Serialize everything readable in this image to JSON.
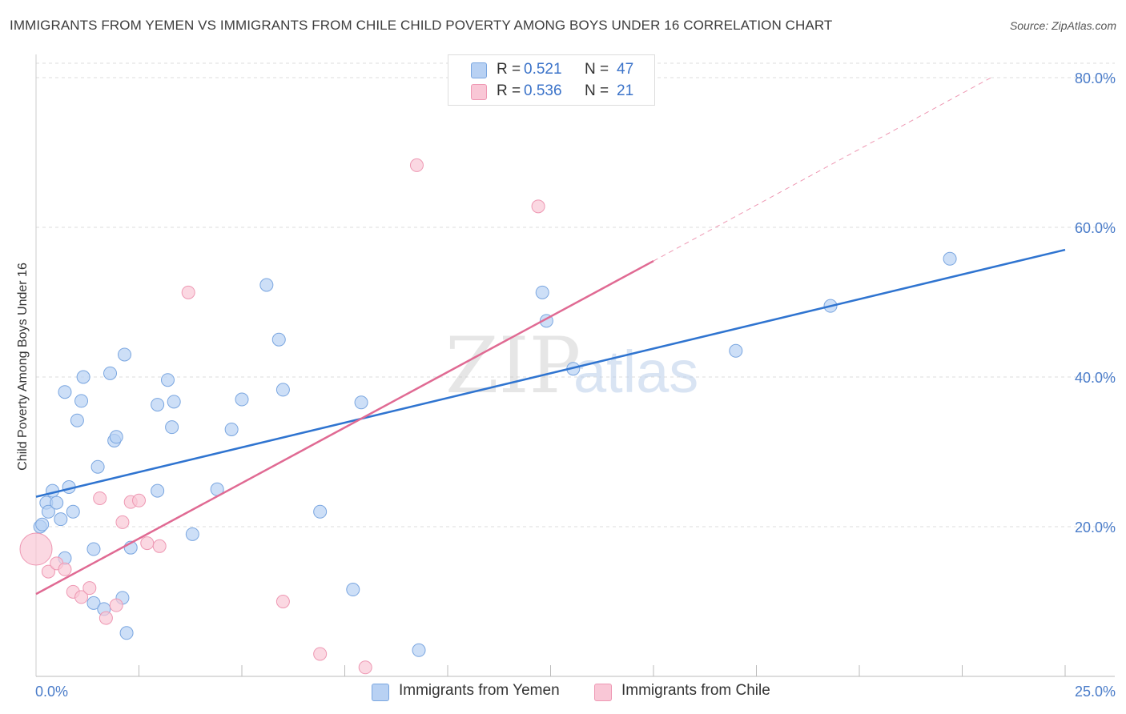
{
  "title": "IMMIGRANTS FROM YEMEN VS IMMIGRANTS FROM CHILE CHILD POVERTY AMONG BOYS UNDER 16 CORRELATION CHART",
  "source": "Source: ZipAtlas.com",
  "watermark": {
    "zip": "ZIP",
    "atlas": "atlas"
  },
  "colors": {
    "yemen_fill": "#b8d1f3",
    "yemen_stroke": "#7aa6e0",
    "yemen_line": "#2f74d0",
    "chile_fill": "#f9c7d6",
    "chile_stroke": "#ee98b3",
    "chile_line": "#e06a93",
    "grid": "#dcdcdc",
    "tick_text": "#4a7cc9"
  },
  "legend": {
    "yemen": {
      "r_label": "R =",
      "r_value": "0.521",
      "n_label": "N =",
      "n_value": "47"
    },
    "chile": {
      "r_label": "R =",
      "r_value": "0.536",
      "n_label": "N =",
      "n_value": "21"
    }
  },
  "chart_data": {
    "type": "scatter",
    "title": "IMMIGRANTS FROM YEMEN VS IMMIGRANTS FROM CHILE CHILD POVERTY AMONG BOYS UNDER 16 CORRELATION CHART",
    "xlabel": "",
    "ylabel": "Child Poverty Among Boys Under 16",
    "xlim": [
      0,
      25
    ],
    "ylim": [
      0,
      80
    ],
    "y_ticks": [
      {
        "value": 20,
        "label": "20.0%"
      },
      {
        "value": 40,
        "label": "40.0%"
      },
      {
        "value": 60,
        "label": "60.0%"
      },
      {
        "value": 80,
        "label": "80.0%"
      }
    ],
    "x_tick_labels": [
      {
        "value": 0,
        "label": "0.0%"
      },
      {
        "value": 25,
        "label": "25.0%"
      }
    ],
    "x_minor_ticks": [
      2.5,
      5,
      7.5,
      10,
      12.5,
      15,
      17.5,
      20,
      22.5,
      25
    ],
    "series": [
      {
        "name": "Immigrants from Yemen",
        "color": "#7aa6e0",
        "trend": {
          "x1": 0,
          "y1": 24.0,
          "x2": 25,
          "y2": 57.0
        },
        "points": [
          [
            0.1,
            20.0
          ],
          [
            0.15,
            20.3
          ],
          [
            0.25,
            23.2
          ],
          [
            0.3,
            22.0
          ],
          [
            0.4,
            24.8
          ],
          [
            0.5,
            23.2
          ],
          [
            0.6,
            21.0
          ],
          [
            0.7,
            15.8
          ],
          [
            0.8,
            25.3
          ],
          [
            0.9,
            22.0
          ],
          [
            0.7,
            38.0
          ],
          [
            1.0,
            34.2
          ],
          [
            1.1,
            36.8
          ],
          [
            1.15,
            40.0
          ],
          [
            1.4,
            17.0
          ],
          [
            1.5,
            28.0
          ],
          [
            1.4,
            9.8
          ],
          [
            1.65,
            9.0
          ],
          [
            1.8,
            40.5
          ],
          [
            1.9,
            31.5
          ],
          [
            1.95,
            32.0
          ],
          [
            2.1,
            10.5
          ],
          [
            2.15,
            43.0
          ],
          [
            2.2,
            5.8
          ],
          [
            2.3,
            17.2
          ],
          [
            2.95,
            24.8
          ],
          [
            2.95,
            36.3
          ],
          [
            3.2,
            39.6
          ],
          [
            3.3,
            33.3
          ],
          [
            3.35,
            36.7
          ],
          [
            3.8,
            19.0
          ],
          [
            4.4,
            25.0
          ],
          [
            4.75,
            33.0
          ],
          [
            5.0,
            37.0
          ],
          [
            5.6,
            52.3
          ],
          [
            5.9,
            45.0
          ],
          [
            6.0,
            38.3
          ],
          [
            6.9,
            22.0
          ],
          [
            7.7,
            11.6
          ],
          [
            7.9,
            36.6
          ],
          [
            9.3,
            3.5
          ],
          [
            12.3,
            51.3
          ],
          [
            12.4,
            47.5
          ],
          [
            13.05,
            41.1
          ],
          [
            17.0,
            43.5
          ],
          [
            19.3,
            49.5
          ],
          [
            22.2,
            55.8
          ]
        ]
      },
      {
        "name": "Immigrants from Chile",
        "color": "#ee98b3",
        "trend": {
          "x1": 0,
          "y1": 11.0,
          "x2": 15,
          "y2": 55.5,
          "dash_x2": 23.2,
          "dash_y2": 80.0
        },
        "points": [
          [
            0.0,
            17.0
          ],
          [
            0.3,
            14.0
          ],
          [
            0.5,
            15.1
          ],
          [
            0.7,
            14.3
          ],
          [
            0.9,
            11.3
          ],
          [
            1.1,
            10.6
          ],
          [
            1.3,
            11.8
          ],
          [
            1.55,
            23.8
          ],
          [
            1.7,
            7.8
          ],
          [
            1.95,
            9.5
          ],
          [
            2.1,
            20.6
          ],
          [
            2.3,
            23.3
          ],
          [
            2.5,
            23.5
          ],
          [
            2.7,
            17.8
          ],
          [
            3.0,
            17.4
          ],
          [
            3.7,
            51.3
          ],
          [
            6.0,
            10.0
          ],
          [
            6.9,
            3.0
          ],
          [
            8.0,
            1.2
          ],
          [
            9.25,
            68.3
          ],
          [
            12.2,
            62.8
          ]
        ]
      }
    ]
  },
  "bottom_legend": {
    "yemen": "Immigrants from Yemen",
    "chile": "Immigrants from Chile"
  }
}
